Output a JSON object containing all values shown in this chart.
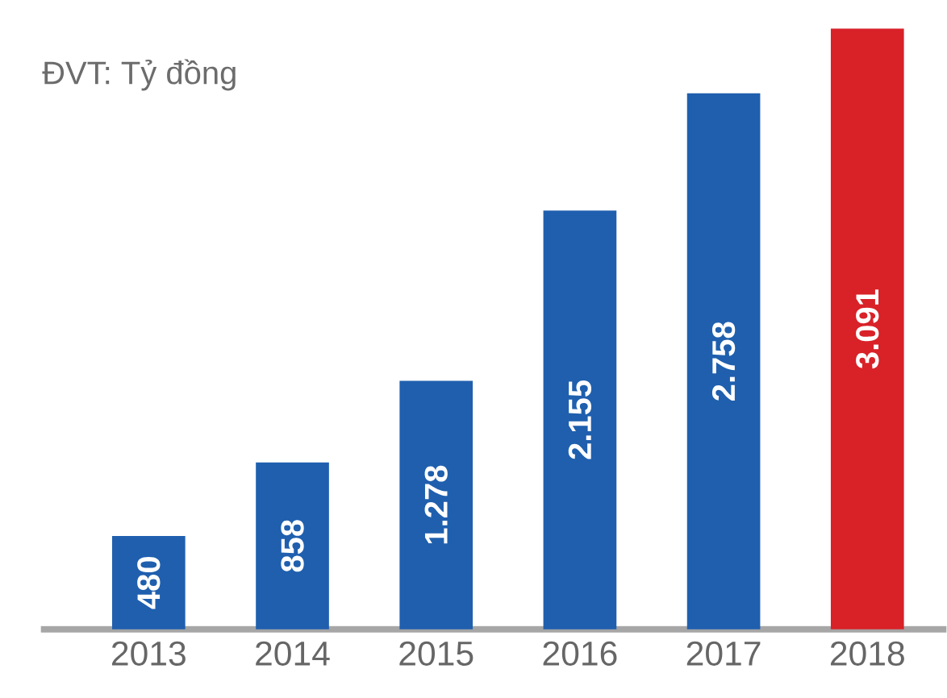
{
  "chart_data": {
    "type": "bar",
    "categories": [
      "2013",
      "2014",
      "2015",
      "2016",
      "2017",
      "2018"
    ],
    "values": [
      480,
      858,
      1278,
      2155,
      2758,
      3091
    ],
    "value_labels": [
      "480",
      "858",
      "1.278",
      "2.155",
      "2.758",
      "3.091"
    ],
    "colors": [
      "#1f5fae",
      "#1f5fae",
      "#1f5fae",
      "#1f5fae",
      "#1f5fae",
      "#d92128"
    ],
    "annotations": [
      "ĐVT: Tỷ đồng"
    ]
  }
}
